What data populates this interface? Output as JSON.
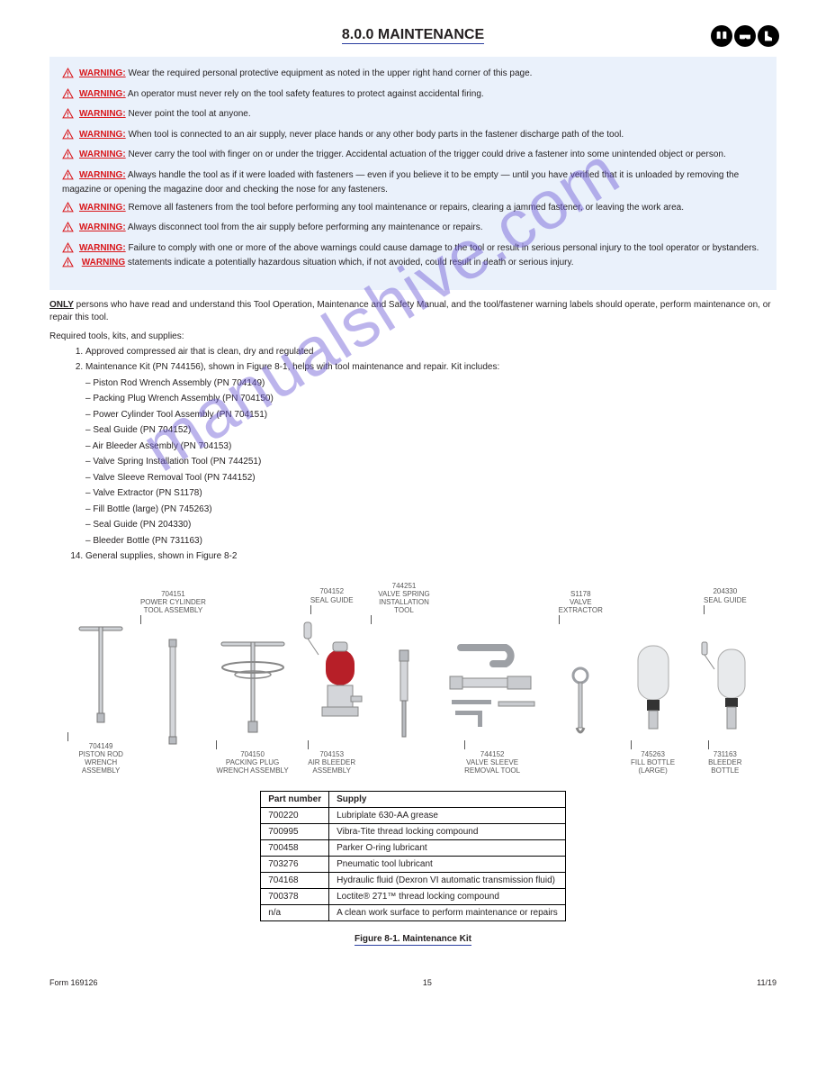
{
  "page": {
    "title": "MAINTENANCE",
    "section_no": "8.0.0",
    "footer_left": "Form 169126",
    "footer_center": "15",
    "footer_right": "11/19"
  },
  "header_icons": [
    "manual-icon",
    "goggles-icon",
    "boots-icon"
  ],
  "warnings": [
    {
      "label": "WARNING:",
      "text": " Wear the required personal protective equipment as noted in the upper right hand corner of this page."
    },
    {
      "label": "WARNING:",
      "text": " An operator must never rely on the tool safety features to protect against accidental firing."
    },
    {
      "label": "WARNING:",
      "text": " Never point the tool at anyone."
    },
    {
      "label": "WARNING:",
      "text": " When tool is connected to an air supply, never place hands or any other body parts in the fastener discharge path of the tool."
    },
    {
      "label": "WARNING:",
      "text": " Never carry the tool with finger on or under the trigger. Accidental actuation of the trigger could drive a fastener into some unintended object or person."
    },
    {
      "label": "WARNING:",
      "text": " Always handle the tool as if it were loaded with fasteners — even if you believe it to be empty — until you have verified that it is unloaded by removing the magazine or opening the magazine door and checking the nose for any fasteners."
    },
    {
      "label": "WARNING:",
      "text": " Remove all fasteners from the tool before performing any tool maintenance or repairs, clearing a jammed fastener, or leaving the work area."
    },
    {
      "label": "WARNING:",
      "text": " Always disconnect tool from the air supply before performing any maintenance or repairs."
    },
    {
      "label": "WARNING:",
      "text": " Failure to comply with one or more of the above warnings could cause damage to the tool or result in serious personal injury to the tool operator or bystanders.",
      "extra_label": "WARNING",
      "extra_text": " statements indicate a potentially hazardous situation which, if not avoided, could result in death or serious injury."
    }
  ],
  "intro": {
    "only_label": "ONLY",
    "text_before": "",
    "text": " persons who have read and understand this Tool Operation, Maintenance and Safety Manual, and the tool/fastener warning labels should operate, perform maintenance on, or repair this tool."
  },
  "required_items_heading": "Required tools, kits, and supplies:",
  "required_items": [
    "Approved compressed air that is clean, dry and regulated",
    "Maintenance Kit (PN 744156), shown in Figure 8-1, helps with tool maintenance and repair. Kit includes:",
    "Piston Rod Wrench Assembly (PN 704149)",
    "Packing Plug Wrench Assembly (PN 704150)",
    "Power Cylinder Tool Assembly (PN 704151)",
    "Seal Guide (PN 704152)",
    "Air Bleeder Assembly (PN 704153)",
    "Valve Spring Installation Tool (PN 744251)",
    "Valve Sleeve Removal Tool (PN 744152)",
    "Valve Extractor (PN S1178)",
    "Fill Bottle (large) (PN 745263)",
    "Seal Guide (PN 204330)",
    "Bleeder Bottle (PN 731163)",
    "General supplies, shown in Figure 8-2"
  ],
  "tools": [
    {
      "top_pn": "",
      "top_name": "",
      "bot_pn": "704149",
      "bot_name": "PISTON ROD\nWRENCH ASSEMBLY"
    },
    {
      "top_pn": "704151",
      "top_name": "POWER CYLINDER\nTOOL ASSEMBLY",
      "bot_pn": "",
      "bot_name": ""
    },
    {
      "top_pn": "",
      "top_name": "",
      "bot_pn": "704150",
      "bot_name": "PACKING PLUG\nWRENCH ASSEMBLY"
    },
    {
      "top_pn": "704152",
      "top_name": "SEAL GUIDE",
      "bot_pn": "704153",
      "bot_name": "AIR BLEEDER\nASSEMBLY"
    },
    {
      "top_pn": "744251",
      "top_name": "VALVE SPRING\nINSTALLATION TOOL",
      "bot_pn": "",
      "bot_name": ""
    },
    {
      "top_pn": "",
      "top_name": "",
      "bot_pn": "744152",
      "bot_name": "VALVE SLEEVE\nREMOVAL TOOL"
    },
    {
      "top_pn": "S1178",
      "top_name": "VALVE\nEXTRACTOR",
      "bot_pn": "",
      "bot_name": ""
    },
    {
      "top_pn": "",
      "top_name": "",
      "bot_pn": "745263",
      "bot_name": "FILL BOTTLE\n(LARGE)"
    },
    {
      "top_pn": "204330",
      "top_name": "SEAL GUIDE",
      "bot_pn": "731163",
      "bot_name": "BLEEDER\nBOTTLE"
    }
  ],
  "supplies_table": {
    "headers": [
      "Part number",
      "Supply"
    ],
    "rows": [
      [
        "700220",
        "Lubriplate 630-AA grease"
      ],
      [
        "700995",
        "Vibra-Tite thread locking compound"
      ],
      [
        "700458",
        "Parker O-ring lubricant"
      ],
      [
        "703276",
        "Pneumatic tool lubricant"
      ],
      [
        "704168",
        "Hydraulic fluid (Dexron VI automatic transmission fluid)"
      ],
      [
        "700378",
        "Loctite® 271™ thread locking compound"
      ],
      [
        "n/a",
        "A clean work surface to perform maintenance or repairs"
      ]
    ]
  },
  "fig_caption": {
    "num": "Figure 8-1.",
    "text": " Maintenance Kit"
  },
  "colors": {
    "warn_red": "#d9171b",
    "underline_blue": "#2b3fa0",
    "box_bg": "#eaf1fb",
    "watermark": "#6d5ad6",
    "gray_label": "#575757"
  },
  "watermark": "manualshive.com"
}
